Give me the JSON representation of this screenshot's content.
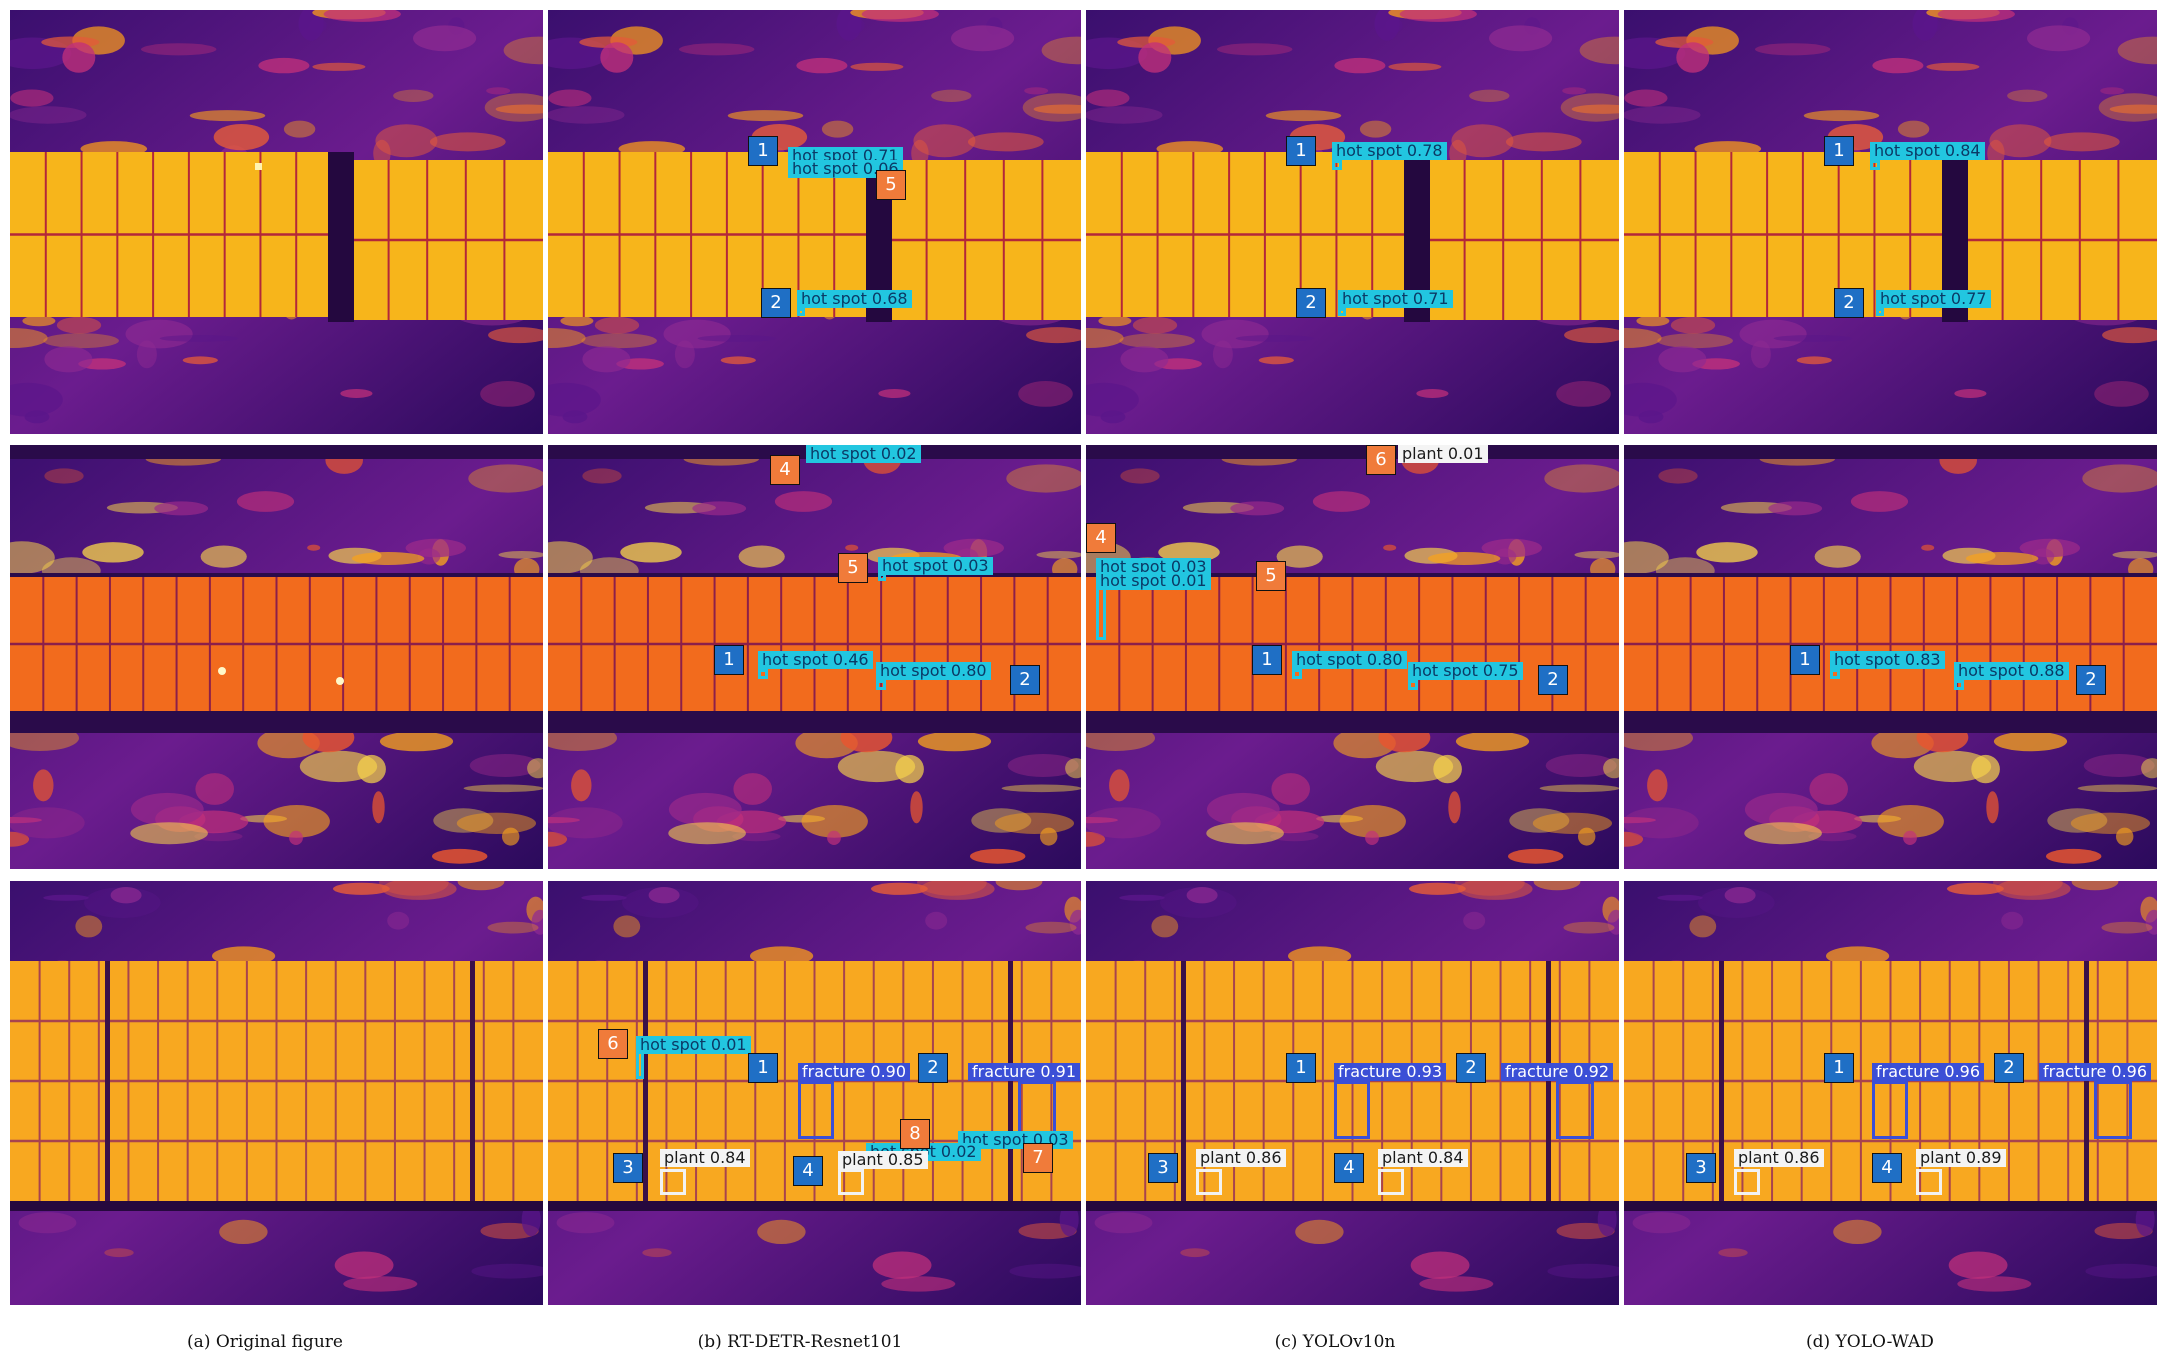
{
  "columns": [
    {
      "caption": "(a) Original figure"
    },
    {
      "caption": "(b) RT-DETR-Resnet101"
    },
    {
      "caption": "(c) YOLOv10n"
    },
    {
      "caption": "(d) YOLO-WAD"
    }
  ],
  "rows": [
    {
      "scene": "panels-horizontal-gap",
      "panel_color": "#f7b51b"
    },
    {
      "scene": "panels-orange-strip",
      "panel_color": "#f26b1d"
    },
    {
      "scene": "panels-grid-with-plants",
      "panel_color": "#f8a820"
    }
  ],
  "detections": {
    "r0c1": [
      {
        "cls": "hotspot",
        "label": "hot spot 0.71"
      },
      {
        "cls": "hotspot",
        "label": "hot spot 0.06"
      },
      {
        "cls": "hotspot",
        "label": "hot spot 0.68"
      }
    ],
    "r0c2": [
      {
        "cls": "hotspot",
        "label": "hot spot 0.78"
      },
      {
        "cls": "hotspot",
        "label": "hot spot 0.71"
      }
    ],
    "r0c3": [
      {
        "cls": "hotspot",
        "label": "hot spot 0.84"
      },
      {
        "cls": "hotspot",
        "label": "hot spot 0.77"
      }
    ],
    "r1c1": [
      {
        "cls": "hotspot",
        "label": "hot spot 0.02"
      },
      {
        "cls": "hotspot",
        "label": "hot spot 0.03"
      },
      {
        "cls": "hotspot",
        "label": "hot spot 0.46"
      },
      {
        "cls": "hotspot",
        "label": "hot spot 0.80"
      }
    ],
    "r1c2": [
      {
        "cls": "plant",
        "label": "plant 0.01"
      },
      {
        "cls": "hotspot",
        "label": "hot spot 0.03"
      },
      {
        "cls": "hotspot",
        "label": "hot spot 0.01"
      },
      {
        "cls": "hotspot",
        "label": "hot spot 0.80"
      },
      {
        "cls": "hotspot",
        "label": "hot spot 0.75"
      }
    ],
    "r1c3": [
      {
        "cls": "hotspot",
        "label": "hot spot 0.83"
      },
      {
        "cls": "hotspot",
        "label": "hot spot 0.88"
      }
    ],
    "r2c1": [
      {
        "cls": "hotspot",
        "label": "hot spot 0.01"
      },
      {
        "cls": "fracture",
        "label": "fracture 0.90"
      },
      {
        "cls": "fracture",
        "label": "fracture 0.91"
      },
      {
        "cls": "hotspot",
        "label": "hot spot 0.03"
      },
      {
        "cls": "hotspot",
        "label": "hot spot 0.02"
      },
      {
        "cls": "plant",
        "label": "plant 0.84"
      },
      {
        "cls": "plant",
        "label": "plant 0.85"
      }
    ],
    "r2c2": [
      {
        "cls": "fracture",
        "label": "fracture 0.93"
      },
      {
        "cls": "fracture",
        "label": "fracture 0.92"
      },
      {
        "cls": "plant",
        "label": "plant 0.86"
      },
      {
        "cls": "plant",
        "label": "plant 0.84"
      }
    ],
    "r2c3": [
      {
        "cls": "fracture",
        "label": "fracture 0.96"
      },
      {
        "cls": "fracture",
        "label": "fracture 0.96"
      },
      {
        "cls": "plant",
        "label": "plant 0.86"
      },
      {
        "cls": "plant",
        "label": "plant 0.89"
      }
    ]
  },
  "markers": {
    "r0c1": [
      {
        "n": "1",
        "color": "blue"
      },
      {
        "n": "5",
        "color": "orange"
      },
      {
        "n": "2",
        "color": "blue"
      }
    ],
    "r0c2": [
      {
        "n": "1",
        "color": "blue"
      },
      {
        "n": "2",
        "color": "blue"
      }
    ],
    "r0c3": [
      {
        "n": "1",
        "color": "blue"
      },
      {
        "n": "2",
        "color": "blue"
      }
    ],
    "r1c1": [
      {
        "n": "4",
        "color": "orange"
      },
      {
        "n": "5",
        "color": "orange"
      },
      {
        "n": "1",
        "color": "blue"
      },
      {
        "n": "2",
        "color": "blue"
      }
    ],
    "r1c2": [
      {
        "n": "6",
        "color": "orange"
      },
      {
        "n": "4",
        "color": "orange"
      },
      {
        "n": "5",
        "color": "orange"
      },
      {
        "n": "1",
        "color": "blue"
      },
      {
        "n": "2",
        "color": "blue"
      }
    ],
    "r1c3": [
      {
        "n": "1",
        "color": "blue"
      },
      {
        "n": "2",
        "color": "blue"
      }
    ],
    "r2c1": [
      {
        "n": "6",
        "color": "orange"
      },
      {
        "n": "1",
        "color": "blue"
      },
      {
        "n": "2",
        "color": "blue"
      },
      {
        "n": "8",
        "color": "orange"
      },
      {
        "n": "7",
        "color": "orange"
      },
      {
        "n": "3",
        "color": "blue"
      },
      {
        "n": "4",
        "color": "blue"
      }
    ],
    "r2c2": [
      {
        "n": "1",
        "color": "blue"
      },
      {
        "n": "2",
        "color": "blue"
      },
      {
        "n": "3",
        "color": "blue"
      },
      {
        "n": "4",
        "color": "blue"
      }
    ],
    "r2c3": [
      {
        "n": "1",
        "color": "blue"
      },
      {
        "n": "2",
        "color": "blue"
      },
      {
        "n": "3",
        "color": "blue"
      },
      {
        "n": "4",
        "color": "blue"
      }
    ]
  },
  "colors": {
    "hotspot": "#22c6e0",
    "fracture": "#3b4fd6",
    "plant": "#f4f4f4",
    "marker_blue": "#1f6fc5",
    "marker_orange": "#f07b3a"
  }
}
